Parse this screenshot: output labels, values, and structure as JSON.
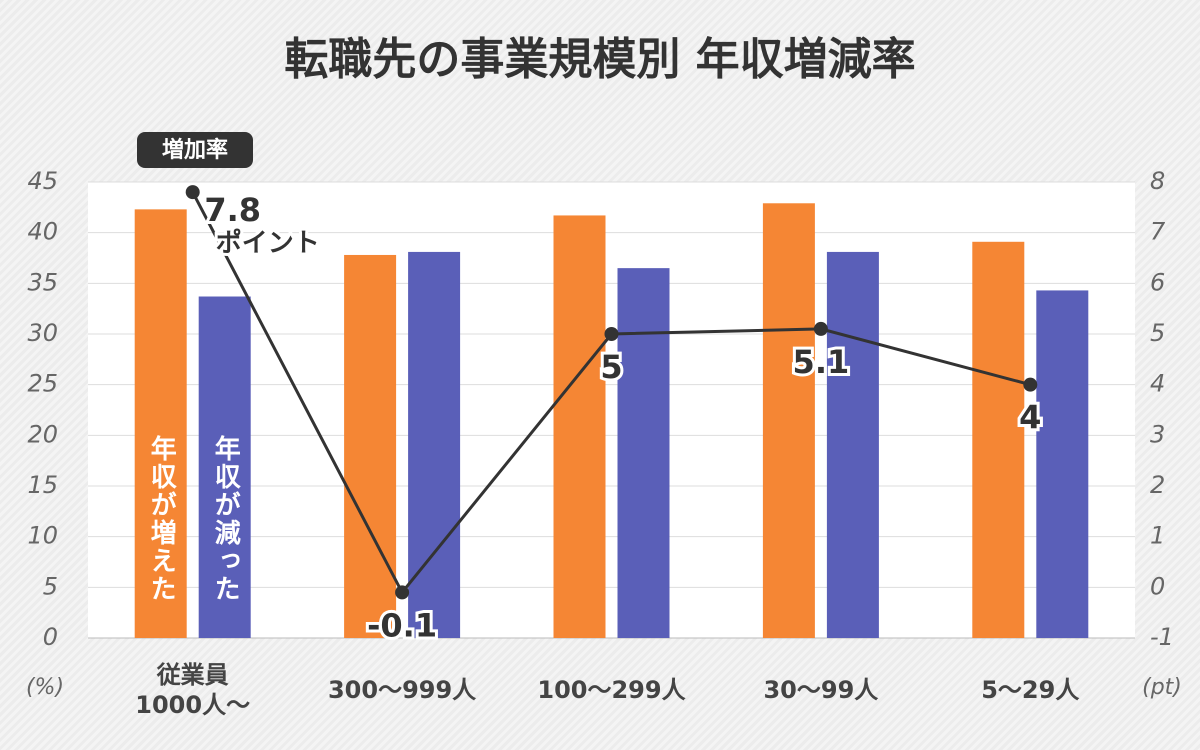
{
  "chart_data": {
    "type": "bar_line",
    "title": "転職先の事業規模別 年収増減率",
    "categories": [
      "従業員\n1000人～",
      "300～999人",
      "100～299人",
      "30～99人",
      "5～29人"
    ],
    "series": [
      {
        "name": "年収が増えた",
        "color": "#f58634",
        "values": [
          42.3,
          37.8,
          41.7,
          42.9,
          39.1
        ]
      },
      {
        "name": "年収が減った",
        "color": "#5a5fb8",
        "values": [
          33.7,
          38.1,
          36.5,
          38.1,
          34.3
        ]
      },
      {
        "name": "増加率",
        "color": "#333333",
        "axis": "y2",
        "type": "line",
        "values": [
          7.8,
          -0.1,
          5,
          5.1,
          4
        ]
      }
    ],
    "annotation": "ポイント",
    "ylabel": "(%)",
    "y2label": "(pt)",
    "ylim": [
      0,
      45
    ],
    "yticks": [
      0,
      5,
      10,
      15,
      20,
      25,
      30,
      35,
      40,
      45
    ],
    "y2lim": [
      -1,
      8
    ],
    "y2ticks": [
      -1,
      0,
      1,
      2,
      3,
      4,
      5,
      6,
      7,
      8
    ],
    "grid": true
  }
}
